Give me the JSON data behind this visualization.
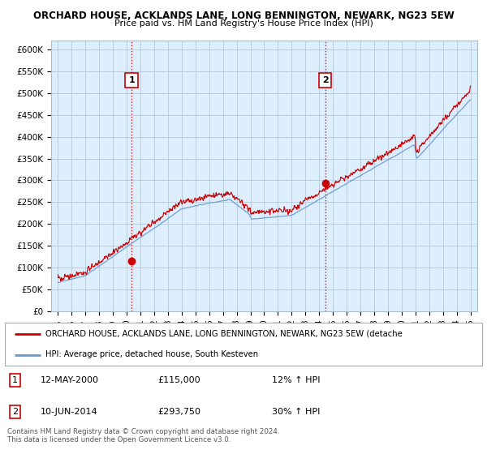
{
  "title1": "ORCHARD HOUSE, ACKLANDS LANE, LONG BENNINGTON, NEWARK, NG23 5EW",
  "title2": "Price paid vs. HM Land Registry's House Price Index (HPI)",
  "ylim": [
    0,
    620000
  ],
  "yticks": [
    0,
    50000,
    100000,
    150000,
    200000,
    250000,
    300000,
    350000,
    400000,
    450000,
    500000,
    550000,
    600000
  ],
  "ytick_labels": [
    "£0",
    "£50K",
    "£100K",
    "£150K",
    "£200K",
    "£250K",
    "£300K",
    "£350K",
    "£400K",
    "£450K",
    "£500K",
    "£550K",
    "£600K"
  ],
  "xlim_start": 1994.5,
  "xlim_end": 2025.5,
  "xticks": [
    1995,
    1996,
    1997,
    1998,
    1999,
    2000,
    2001,
    2002,
    2003,
    2004,
    2005,
    2006,
    2007,
    2008,
    2009,
    2010,
    2011,
    2012,
    2013,
    2014,
    2015,
    2016,
    2017,
    2018,
    2019,
    2020,
    2021,
    2022,
    2023,
    2024,
    2025
  ],
  "sale1_x": 2000.36,
  "sale1_y": 115000,
  "sale1_label": "1",
  "sale2_x": 2014.44,
  "sale2_y": 293750,
  "sale2_label": "2",
  "legend_line1": "ORCHARD HOUSE, ACKLANDS LANE, LONG BENNINGTON, NEWARK, NG23 5EW (detache",
  "legend_line2": "HPI: Average price, detached house, South Kesteven",
  "ann1_date": "12-MAY-2000",
  "ann1_price": "£115,000",
  "ann1_hpi": "12% ↑ HPI",
  "ann2_date": "10-JUN-2014",
  "ann2_price": "£293,750",
  "ann2_hpi": "30% ↑ HPI",
  "footer": "Contains HM Land Registry data © Crown copyright and database right 2024.\nThis data is licensed under the Open Government Licence v3.0.",
  "red_color": "#cc0000",
  "blue_color": "#6699cc",
  "chart_bg": "#ddeeff",
  "bg_color": "#ffffff",
  "grid_color": "#bbccdd",
  "sale_marker_color": "#cc0000"
}
